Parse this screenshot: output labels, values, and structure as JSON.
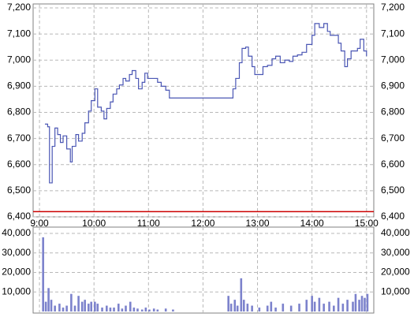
{
  "chart_data": [
    {
      "type": "line",
      "step": true,
      "color": "#4a56b4",
      "grid": true,
      "reference_line": {
        "value": 6420,
        "color": "#cc0000"
      },
      "x": [
        546,
        549,
        551,
        554,
        557,
        560,
        563,
        566,
        570,
        574,
        576,
        580,
        583,
        587,
        590,
        594,
        597,
        601,
        604,
        608,
        611,
        614,
        618,
        621,
        625,
        628,
        632,
        635,
        639,
        642,
        646,
        649,
        653,
        656,
        659,
        665,
        670,
        674,
        679,
        683,
        753,
        756,
        760,
        763,
        767,
        770,
        774,
        777,
        786,
        791,
        796,
        800,
        805,
        810,
        815,
        819,
        824,
        829,
        834,
        840,
        843,
        848,
        853,
        857,
        860,
        869,
        872,
        876,
        879,
        883,
        890,
        893,
        897,
        900
      ],
      "values": [
        6755,
        6745,
        6530,
        6670,
        6740,
        6715,
        6685,
        6710,
        6660,
        6610,
        6670,
        6715,
        6690,
        6720,
        6760,
        6805,
        6845,
        6890,
        6820,
        6805,
        6775,
        6815,
        6840,
        6870,
        6890,
        6905,
        6930,
        6920,
        6945,
        6960,
        6930,
        6890,
        6915,
        6950,
        6930,
        6930,
        6915,
        6900,
        6885,
        6855,
        6890,
        6930,
        6990,
        7045,
        7050,
        7015,
        6975,
        6945,
        6975,
        6980,
        7005,
        7015,
        6990,
        7000,
        6995,
        7015,
        7020,
        7030,
        7060,
        7095,
        7140,
        7125,
        7140,
        7110,
        7095,
        7065,
        7035,
        6975,
        7005,
        7035,
        7045,
        7080,
        7035,
        7015
      ],
      "xlim": [
        533,
        908
      ],
      "ylim": [
        6400,
        7200
      ],
      "xticks": [
        {
          "value": 540,
          "label": "9:00"
        },
        {
          "value": 600,
          "label": "10:00"
        },
        {
          "value": 660,
          "label": "11:00"
        },
        {
          "value": 720,
          "label": "12:00"
        },
        {
          "value": 780,
          "label": "13:00"
        },
        {
          "value": 840,
          "label": "14:00"
        },
        {
          "value": 900,
          "label": "15:00"
        }
      ],
      "yticks": [
        {
          "value": 6400,
          "label": "6,400"
        },
        {
          "value": 6500,
          "label": "6,500"
        },
        {
          "value": 6600,
          "label": "6,600"
        },
        {
          "value": 6700,
          "label": "6,700"
        },
        {
          "value": 6800,
          "label": "6,800"
        },
        {
          "value": 6900,
          "label": "6,900"
        },
        {
          "value": 7000,
          "label": "7,000"
        },
        {
          "value": 7100,
          "label": "7,100"
        },
        {
          "value": 7200,
          "label": "7,200"
        }
      ]
    },
    {
      "type": "bar",
      "color": "#7c82cc",
      "grid": true,
      "x": [
        544,
        547,
        550,
        553,
        557,
        562,
        566,
        570,
        575,
        579,
        583,
        587,
        590,
        594,
        597,
        601,
        604,
        609,
        614,
        618,
        622,
        627,
        631,
        635,
        640,
        644,
        648,
        653,
        657,
        661,
        666,
        670,
        679,
        687,
        748,
        751,
        755,
        758,
        762,
        765,
        769,
        774,
        782,
        791,
        795,
        800,
        808,
        817,
        826,
        834,
        840,
        843,
        848,
        853,
        859,
        864,
        869,
        874,
        879,
        885,
        888,
        892,
        895,
        898,
        901
      ],
      "values": [
        38000,
        5000,
        12000,
        6000,
        3000,
        4000,
        2000,
        3000,
        9000,
        3000,
        8000,
        5000,
        6000,
        4000,
        5000,
        5000,
        4000,
        2000,
        3000,
        2000,
        2000,
        4000,
        1500,
        3000,
        5000,
        2000,
        1500,
        1000,
        2000,
        1000,
        1500,
        1000,
        1500,
        1000,
        8000,
        4000,
        6000,
        3000,
        17000,
        6000,
        4000,
        3000,
        2000,
        3000,
        5000,
        2000,
        4000,
        3000,
        4000,
        6000,
        8000,
        5000,
        7000,
        4000,
        5000,
        3000,
        7000,
        4000,
        6000,
        5000,
        9000,
        6000,
        8000,
        7000,
        9000
      ],
      "xlim": [
        533,
        908
      ],
      "ylim": [
        0,
        40000
      ],
      "yticks": [
        {
          "value": 10000,
          "label": "10,000"
        },
        {
          "value": 20000,
          "label": "20,000"
        },
        {
          "value": 30000,
          "label": "30,000"
        },
        {
          "value": 40000,
          "label": "40,000"
        }
      ]
    }
  ]
}
